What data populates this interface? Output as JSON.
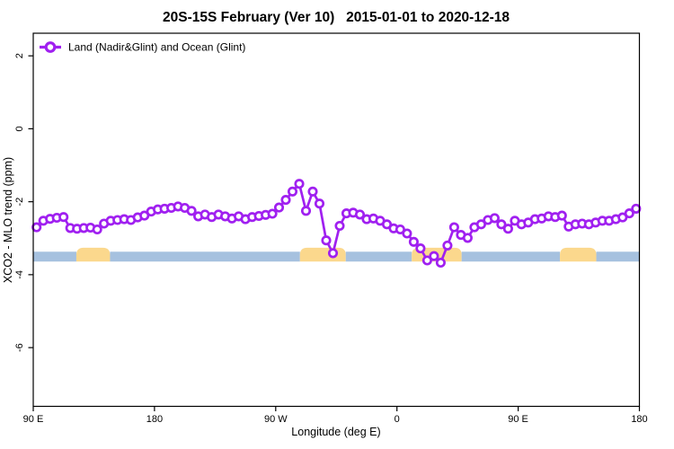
{
  "title": "20S-15S February (Ver 10)   2015-01-01 to 2020-12-18",
  "legend": {
    "label": "Land (Nadir&Glint) and Ocean (Glint)",
    "marker": "open-circle",
    "position": "top-left"
  },
  "colors": {
    "series": "#A020F0",
    "marker_fill": "#FFFFFF",
    "ocean_band": "#A6C1DF",
    "land_band": "#FBD88D",
    "axis": "#000000",
    "background": "#FFFFFF"
  },
  "axes": {
    "x": {
      "label": "Longitude (deg E)",
      "range": [
        90,
        540
      ],
      "ticks": [
        {
          "value": 90,
          "label": "90 E"
        },
        {
          "value": 180,
          "label": "180"
        },
        {
          "value": 270,
          "label": "90 W"
        },
        {
          "value": 360,
          "label": "0"
        },
        {
          "value": 450,
          "label": "90 E"
        },
        {
          "value": 540,
          "label": "180"
        }
      ]
    },
    "y": {
      "label": "XCO2 - MLO trend (ppm)",
      "range": [
        -7.61,
        2.62
      ],
      "ticks": [
        {
          "value": 2,
          "label": "2"
        },
        {
          "value": 0,
          "label": "0"
        },
        {
          "value": -2,
          "label": "-2"
        },
        {
          "value": -4,
          "label": "-4"
        },
        {
          "value": -6,
          "label": "-6"
        }
      ]
    }
  },
  "band": {
    "description": "surface-type strip (ocean=blue, land=orange)",
    "top_ppm": -3.37,
    "bottom_ppm": -3.64,
    "land_top_ppm": -3.26,
    "segments": [
      {
        "type": "ocean",
        "from": 90,
        "to": 122
      },
      {
        "type": "land",
        "from": 122,
        "to": 147
      },
      {
        "type": "ocean",
        "from": 147,
        "to": 288
      },
      {
        "type": "land",
        "from": 288,
        "to": 322
      },
      {
        "type": "ocean",
        "from": 322,
        "to": 371
      },
      {
        "type": "land",
        "from": 371,
        "to": 408
      },
      {
        "type": "ocean",
        "from": 408,
        "to": 481
      },
      {
        "type": "land",
        "from": 481,
        "to": 508
      },
      {
        "type": "ocean",
        "from": 508,
        "to": 540
      }
    ]
  },
  "chart_data": {
    "type": "line",
    "title": "20S-15S February (Ver 10)   2015-01-01 to 2020-12-18",
    "xlabel": "Longitude (deg E)",
    "ylabel": "XCO2 - MLO trend (ppm)",
    "xlim": [
      90,
      540
    ],
    "ylim": [
      -7.61,
      2.62
    ],
    "grid": false,
    "legend_position": "top-left",
    "x": [
      92.5,
      97.5,
      102.5,
      107.5,
      112.5,
      117.5,
      122.5,
      127.5,
      132.5,
      137.5,
      142.5,
      147.5,
      152.5,
      157.5,
      162.5,
      167.5,
      172.5,
      177.5,
      182.5,
      187.5,
      192.5,
      197.5,
      202.5,
      207.5,
      212.5,
      217.5,
      222.5,
      227.5,
      232.5,
      237.5,
      242.5,
      247.5,
      252.5,
      257.5,
      262.5,
      267.5,
      272.5,
      277.5,
      282.5,
      287.5,
      292.5,
      297.5,
      302.5,
      307.5,
      312.5,
      317.5,
      322.5,
      327.5,
      332.5,
      337.5,
      342.5,
      347.5,
      352.5,
      357.5,
      362.5,
      367.5,
      372.5,
      377.5,
      382.5,
      387.5,
      392.5,
      397.5,
      402.5,
      407.5,
      412.5,
      417.5,
      422.5,
      427.5,
      432.5,
      437.5,
      442.5,
      447.5,
      452.5,
      457.5,
      462.5,
      467.5,
      472.5,
      477.5,
      482.5,
      487.5,
      492.5,
      497.5,
      502.5,
      507.5,
      512.5,
      517.5,
      522.5,
      527.5,
      532.5,
      537.5
    ],
    "series": [
      {
        "name": "Land (Nadir&Glint) and Ocean (Glint)",
        "color": "#A020F0",
        "values": [
          -2.7,
          -2.52,
          -2.47,
          -2.44,
          -2.42,
          -2.72,
          -2.74,
          -2.72,
          -2.71,
          -2.76,
          -2.6,
          -2.52,
          -2.5,
          -2.48,
          -2.5,
          -2.43,
          -2.38,
          -2.27,
          -2.21,
          -2.19,
          -2.17,
          -2.13,
          -2.17,
          -2.25,
          -2.4,
          -2.35,
          -2.42,
          -2.35,
          -2.4,
          -2.46,
          -2.4,
          -2.48,
          -2.42,
          -2.39,
          -2.36,
          -2.33,
          -2.16,
          -1.95,
          -1.72,
          -1.51,
          -2.25,
          -1.72,
          -2.05,
          -3.06,
          -3.41,
          -2.66,
          -2.32,
          -2.3,
          -2.35,
          -2.48,
          -2.46,
          -2.52,
          -2.62,
          -2.73,
          -2.76,
          -2.87,
          -3.1,
          -3.28,
          -3.61,
          -3.49,
          -3.67,
          -3.2,
          -2.7,
          -2.91,
          -2.99,
          -2.7,
          -2.62,
          -2.5,
          -2.45,
          -2.62,
          -2.74,
          -2.52,
          -2.62,
          -2.57,
          -2.48,
          -2.46,
          -2.4,
          -2.42,
          -2.38,
          -2.68,
          -2.62,
          -2.6,
          -2.62,
          -2.57,
          -2.52,
          -2.52,
          -2.48,
          -2.43,
          -2.32,
          -2.19
        ]
      }
    ]
  }
}
